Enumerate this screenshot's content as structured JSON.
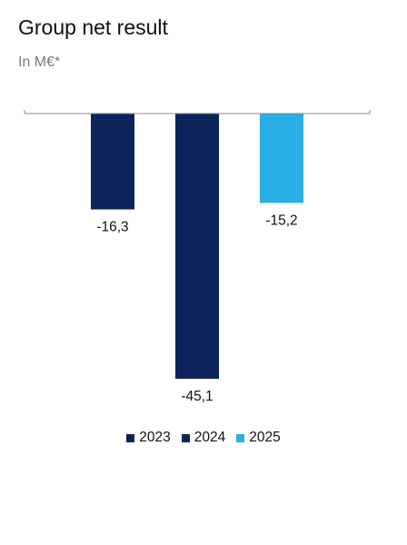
{
  "chart_data": {
    "type": "bar",
    "title": "Group net result",
    "subtitle": "In M€*",
    "categories": [
      "2023",
      "2024",
      "2025"
    ],
    "values": [
      -16.3,
      -45.1,
      -15.2
    ],
    "value_labels": [
      "-16,3",
      "-45,1",
      "-15,2"
    ],
    "colors": [
      "#0c2459",
      "#0c2459",
      "#29aee6"
    ],
    "legend": [
      "2023",
      "2024",
      "2025"
    ],
    "legend_position": "bottom",
    "ylim": [
      -45.1,
      0
    ],
    "grid": false
  }
}
